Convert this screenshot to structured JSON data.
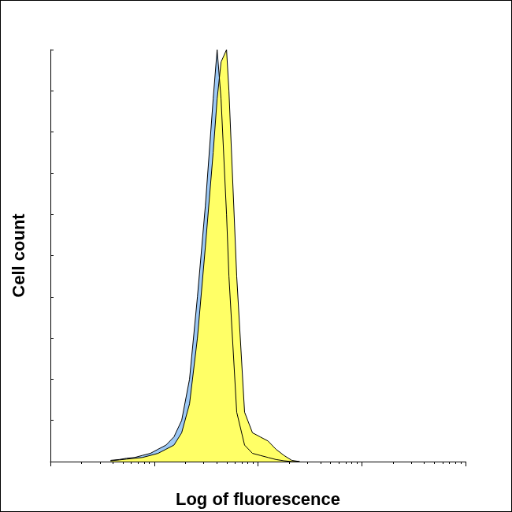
{
  "chart_data": {
    "type": "area",
    "x_label": "Log of fluorescence",
    "y_label": "Cell count",
    "log": "x",
    "grid": false,
    "tick_labels": false,
    "xlim": [
      1,
      10000
    ],
    "xticks": [
      1,
      10,
      100,
      1000,
      10000
    ],
    "ylim": [
      0,
      100
    ],
    "yticks": [
      0,
      10,
      20,
      30,
      40,
      50,
      60,
      70,
      80,
      90,
      100
    ],
    "x": [
      3.8,
      4.6,
      5.4,
      6.5,
      7.7,
      9.2,
      10.9,
      13,
      15.5,
      18.4,
      21.9,
      26.1,
      31.1,
      37,
      40.4,
      44.1,
      49.8,
      52.5,
      62.4,
      74.3,
      88.5,
      105,
      125,
      149,
      178,
      212,
      252
    ],
    "series": [
      {
        "color": "#9cc8f5",
        "values": [
          0.3,
          0.5,
          0.8,
          1,
          1.5,
          2,
          3,
          4,
          6,
          10,
          20,
          40,
          62,
          88,
          100,
          88,
          60,
          45,
          12,
          4,
          2,
          1.5,
          1,
          0.5,
          0.2,
          0,
          0
        ]
      },
      {
        "color": "#ffff66",
        "values": [
          0.2,
          0.4,
          0.6,
          0.8,
          1,
          1.5,
          2,
          3,
          4,
          7,
          14,
          30,
          52,
          75,
          88,
          97,
          100,
          90,
          45,
          12,
          7,
          6,
          5,
          3,
          1.5,
          0.3,
          0
        ]
      }
    ]
  }
}
